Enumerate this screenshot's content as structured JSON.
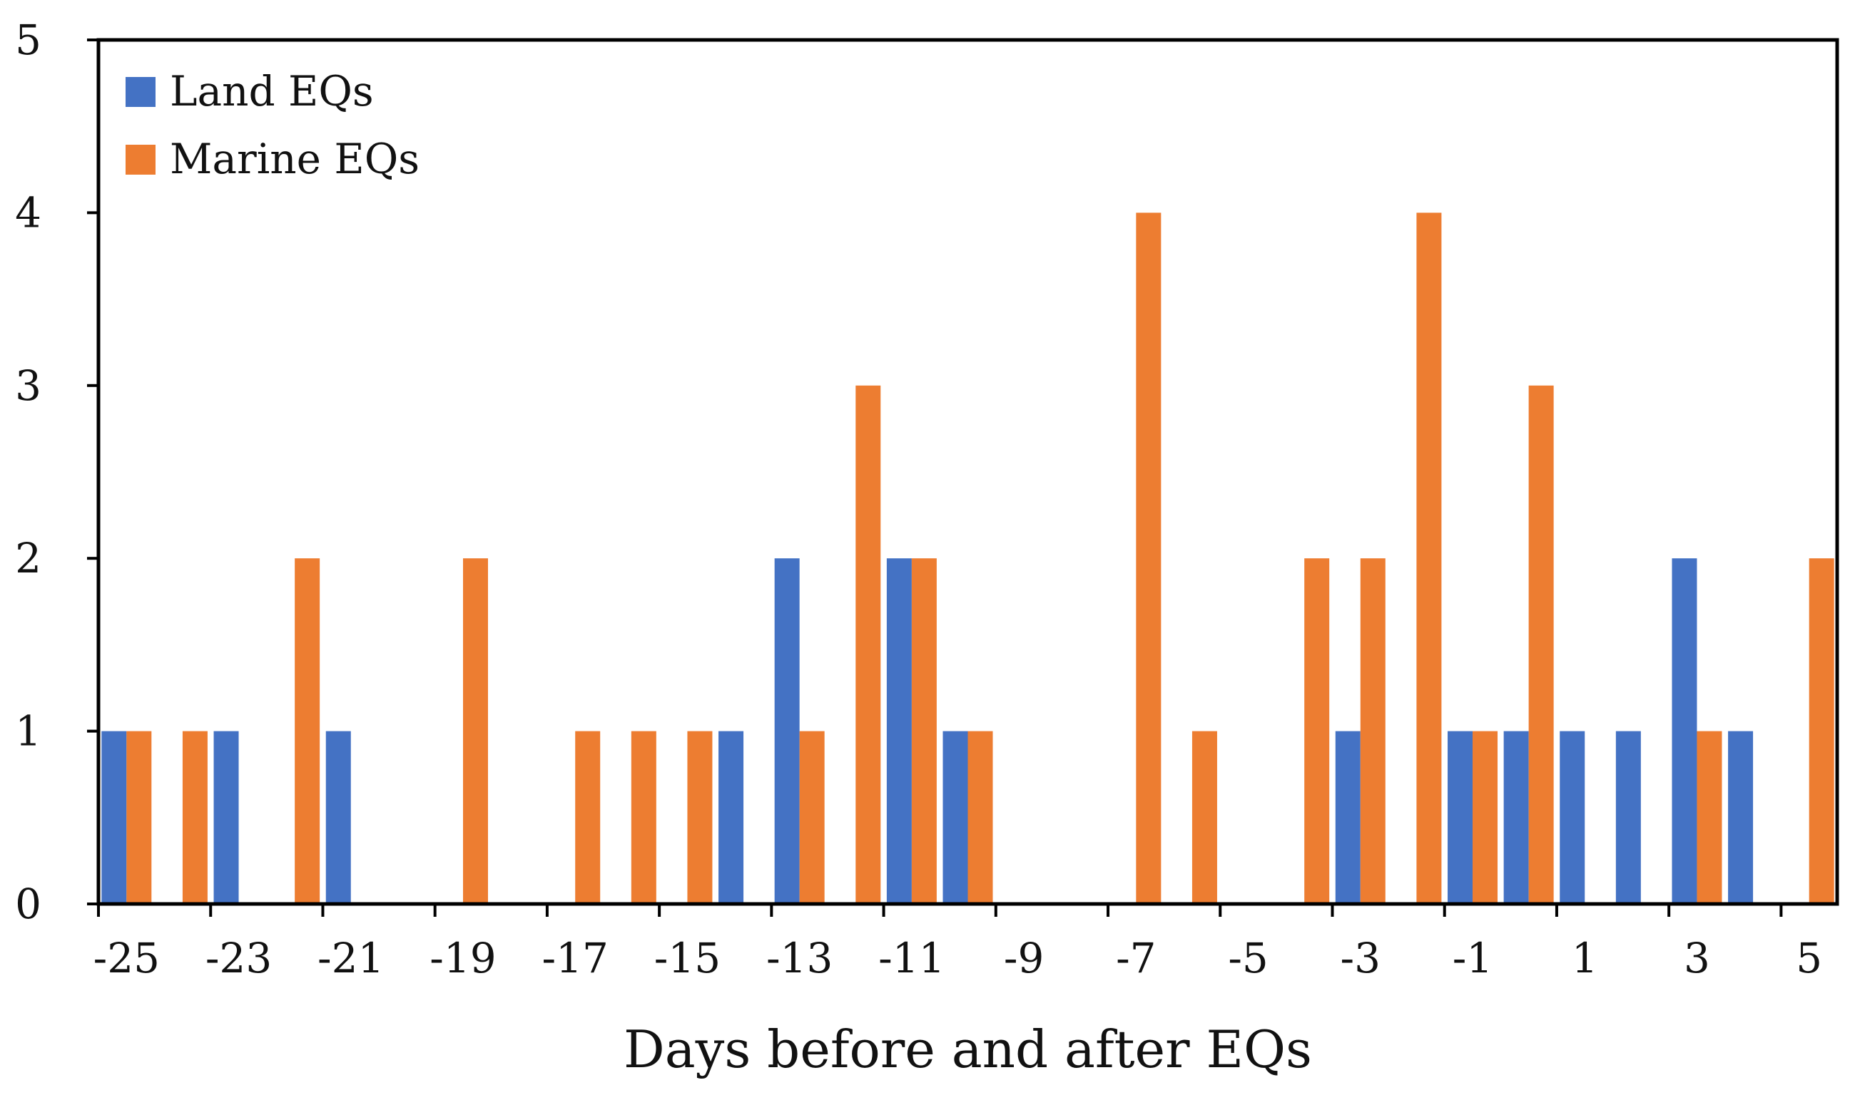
{
  "chart_data": {
    "type": "bar",
    "title": "",
    "xlabel": "Days before and after EQs",
    "ylabel": "",
    "ylim": [
      0,
      5
    ],
    "yticks": [
      0,
      1,
      2,
      3,
      4,
      5
    ],
    "categories": [
      -25,
      -24,
      -23,
      -22,
      -21,
      -20,
      -19,
      -18,
      -17,
      -16,
      -15,
      -14,
      -13,
      -12,
      -11,
      -10,
      -9,
      -8,
      -7,
      -6,
      -5,
      -4,
      -3,
      -2,
      -1,
      0,
      1,
      2,
      3,
      4,
      5
    ],
    "xtick_labels": [
      "-25",
      "-23",
      "-21",
      "-19",
      "-17",
      "-15",
      "-13",
      "-11",
      "-9",
      "-7",
      "-5",
      "-3",
      "-1",
      "1",
      "3",
      "5"
    ],
    "series": [
      {
        "name": "Land EQs",
        "color": "#4472C4",
        "values": [
          1,
          0,
          1,
          0,
          1,
          0,
          0,
          0,
          0,
          0,
          0,
          1,
          2,
          0,
          2,
          1,
          0,
          0,
          0,
          0,
          0,
          0,
          1,
          0,
          1,
          1,
          1,
          1,
          2,
          1,
          0
        ]
      },
      {
        "name": "Marine EQs",
        "color": "#ED7D31",
        "values": [
          1,
          1,
          0,
          2,
          0,
          0,
          2,
          0,
          1,
          1,
          1,
          0,
          1,
          3,
          2,
          1,
          0,
          0,
          4,
          1,
          0,
          2,
          2,
          4,
          1,
          3,
          0,
          0,
          1,
          0,
          2
        ]
      }
    ],
    "legend": {
      "position": "top-left"
    },
    "grid": false
  }
}
